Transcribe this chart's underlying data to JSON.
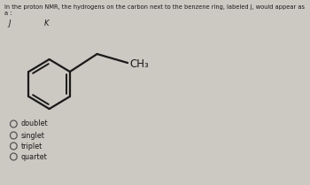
{
  "title": "In the proton NMR, the hydrogens on the carbon next to the benzene ring, labeled J, would appear as a :",
  "label_j": "J",
  "label_k": "K",
  "ch3_label": "CH₃",
  "options": [
    "doublet",
    "singlet",
    "triplet",
    "quartet"
  ],
  "bg_color": "#ccc8c2",
  "text_color": "#1a1a1a",
  "title_fontsize": 4.8,
  "option_fontsize": 5.8,
  "label_fontsize": 6.0,
  "bond_color": "#1a1a1a",
  "bond_lw": 1.6
}
